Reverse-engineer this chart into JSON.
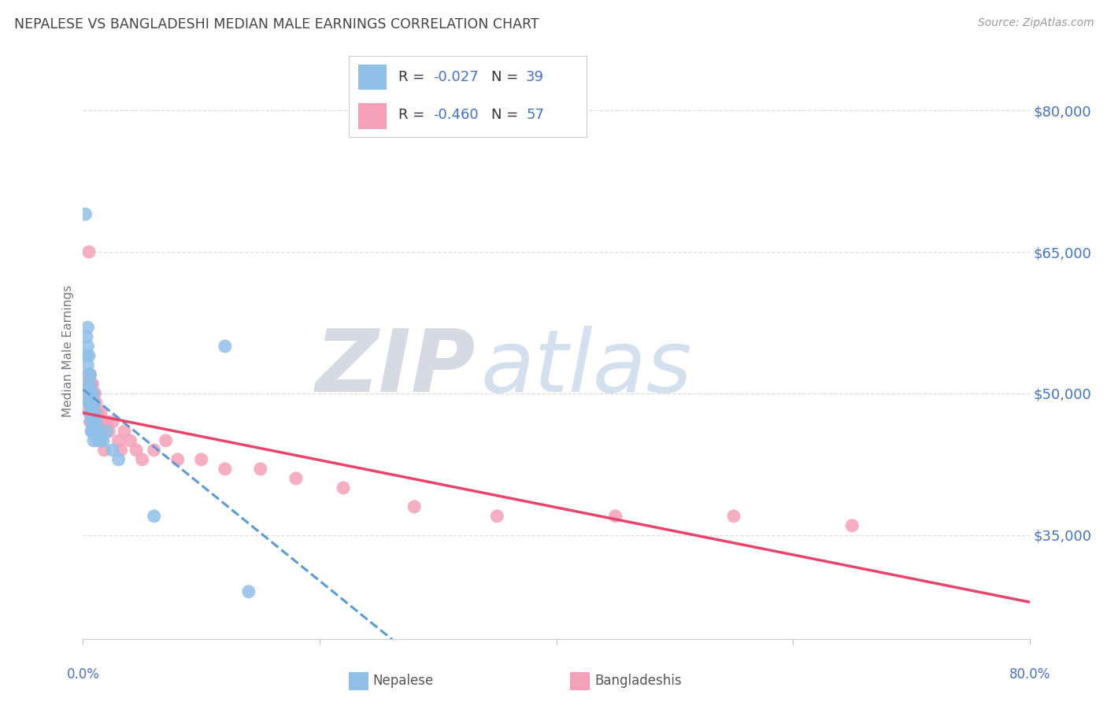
{
  "title": "NEPALESE VS BANGLADESHI MEDIAN MALE EARNINGS CORRELATION CHART",
  "source": "Source: ZipAtlas.com",
  "ylabel": "Median Male Earnings",
  "xlim": [
    0.0,
    0.8
  ],
  "ylim": [
    24000,
    85000
  ],
  "yticks": [
    35000,
    50000,
    65000,
    80000
  ],
  "xticks": [
    0.0,
    0.2,
    0.4,
    0.6,
    0.8
  ],
  "ytick_labels": [
    "$35,000",
    "$50,000",
    "$65,000",
    "$80,000"
  ],
  "nepalese_color": "#90C0E8",
  "bangladeshi_color": "#F4A0B8",
  "trend_nepalese_color": "#5B9BD5",
  "trend_bangladeshi_color": "#E8456E",
  "watermark_zip_color": "#C0C8D8",
  "watermark_atlas_color": "#B0C8E8",
  "background_color": "#FFFFFF",
  "grid_color": "#DDDDDD",
  "nepalese_x": [
    0.002,
    0.003,
    0.003,
    0.004,
    0.004,
    0.004,
    0.005,
    0.005,
    0.005,
    0.005,
    0.005,
    0.006,
    0.006,
    0.006,
    0.006,
    0.007,
    0.007,
    0.007,
    0.007,
    0.008,
    0.008,
    0.008,
    0.008,
    0.009,
    0.009,
    0.009,
    0.01,
    0.01,
    0.011,
    0.012,
    0.013,
    0.015,
    0.017,
    0.02,
    0.025,
    0.03,
    0.06,
    0.12,
    0.14
  ],
  "nepalese_y": [
    69000,
    56000,
    54000,
    57000,
    55000,
    53000,
    54000,
    52000,
    51000,
    50000,
    49000,
    52000,
    51000,
    49000,
    48000,
    50000,
    48000,
    47000,
    46000,
    50000,
    49000,
    48000,
    46000,
    49000,
    47000,
    45000,
    48000,
    46000,
    47000,
    46000,
    46000,
    45000,
    45000,
    46000,
    44000,
    43000,
    37000,
    55000,
    29000
  ],
  "bangladeshi_x": [
    0.003,
    0.003,
    0.004,
    0.004,
    0.005,
    0.005,
    0.005,
    0.006,
    0.006,
    0.006,
    0.007,
    0.007,
    0.007,
    0.008,
    0.008,
    0.008,
    0.008,
    0.009,
    0.009,
    0.009,
    0.01,
    0.01,
    0.01,
    0.011,
    0.011,
    0.012,
    0.012,
    0.013,
    0.013,
    0.014,
    0.015,
    0.015,
    0.016,
    0.017,
    0.018,
    0.02,
    0.022,
    0.025,
    0.03,
    0.032,
    0.035,
    0.04,
    0.045,
    0.05,
    0.06,
    0.07,
    0.08,
    0.1,
    0.12,
    0.15,
    0.18,
    0.22,
    0.28,
    0.35,
    0.45,
    0.55,
    0.65
  ],
  "bangladeshi_y": [
    51000,
    49000,
    52000,
    50000,
    65000,
    51000,
    48000,
    52000,
    50000,
    47000,
    51000,
    49000,
    47000,
    51000,
    49000,
    48000,
    46000,
    50000,
    49000,
    46000,
    50000,
    48000,
    46000,
    49000,
    47000,
    48000,
    46000,
    47000,
    45000,
    47000,
    48000,
    45000,
    46000,
    47000,
    44000,
    47000,
    46000,
    47000,
    45000,
    44000,
    46000,
    45000,
    44000,
    43000,
    44000,
    45000,
    43000,
    43000,
    42000,
    42000,
    41000,
    40000,
    38000,
    37000,
    37000,
    37000,
    36000
  ]
}
